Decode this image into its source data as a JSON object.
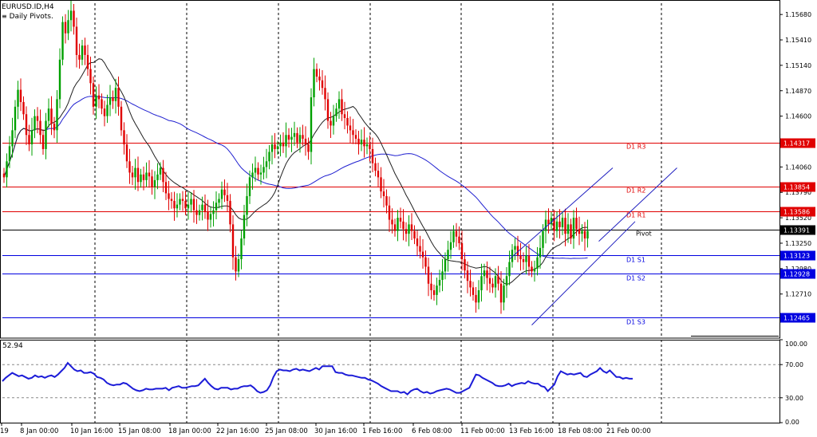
{
  "window": {
    "symbol_title": "EURUSD.ID,H4",
    "indicator_name": "Daily Pivots"
  },
  "chart_data": [
    {
      "type": "candlestick",
      "title": "EURUSD.ID,H4",
      "symbol": "EURUSD.ID",
      "timeframe": "H4",
      "ylim": [
        1.1225,
        1.158
      ],
      "price_ticks": [
        "1.15680",
        "1.15410",
        "1.15140",
        "1.14870",
        "1.14600",
        "1.14330",
        "1.14060",
        "1.13790",
        "1.13520",
        "1.13250",
        "1.12980",
        "1.12710",
        "1.12440"
      ],
      "x_tick_labels": [
        "19",
        "8 Jan 00:00",
        "10 Jan 16:00",
        "15 Jan 08:00",
        "18 Jan 00:00",
        "22 Jan 16:00",
        "25 Jan 08:00",
        "30 Jan 16:00",
        "1 Feb 16:00",
        "6 Feb 08:00",
        "11 Feb 00:00",
        "13 Feb 16:00",
        "18 Feb 08:00",
        "21 Feb 00:00"
      ],
      "close_series": [
        1.1395,
        1.1412,
        1.1428,
        1.1445,
        1.147,
        1.1488,
        1.1475,
        1.1462,
        1.144,
        1.143,
        1.1445,
        1.146,
        1.1455,
        1.144,
        1.1425,
        1.1455,
        1.1468,
        1.1452,
        1.1445,
        1.1478,
        1.152,
        1.156,
        1.1548,
        1.1562,
        1.1572,
        1.1555,
        1.1525,
        1.152,
        1.1535,
        1.1525,
        1.151,
        1.1495,
        1.147,
        1.1482,
        1.1478,
        1.1468,
        1.146,
        1.1472,
        1.148,
        1.1476,
        1.149,
        1.147,
        1.1445,
        1.143,
        1.1412,
        1.14,
        1.1395,
        1.1405,
        1.139,
        1.1398,
        1.1392,
        1.14,
        1.1396,
        1.1385,
        1.1392,
        1.1398,
        1.1405,
        1.139,
        1.1378,
        1.1372,
        1.137,
        1.1362,
        1.1366,
        1.1372,
        1.137,
        1.1362,
        1.1366,
        1.1372,
        1.136,
        1.1355,
        1.136,
        1.1366,
        1.1358,
        1.135,
        1.1356,
        1.136,
        1.1368,
        1.1372,
        1.1382,
        1.1376,
        1.137,
        1.1345,
        1.131,
        1.1295,
        1.1308,
        1.133,
        1.1355,
        1.1375,
        1.1395,
        1.14,
        1.1405,
        1.1398,
        1.14,
        1.1406,
        1.1412,
        1.1422,
        1.143,
        1.1425,
        1.1428,
        1.1432,
        1.1428,
        1.144,
        1.1435,
        1.1438,
        1.1442,
        1.1432,
        1.144,
        1.1436,
        1.143,
        1.1422,
        1.148,
        1.151,
        1.1502,
        1.1498,
        1.149,
        1.1478,
        1.1455,
        1.145,
        1.146,
        1.1468,
        1.1478,
        1.1462,
        1.1458,
        1.145,
        1.1445,
        1.144,
        1.1436,
        1.143,
        1.1435,
        1.1428,
        1.143,
        1.1425,
        1.141,
        1.1402,
        1.1395,
        1.138,
        1.1375,
        1.1365,
        1.135,
        1.1345,
        1.1338,
        1.1352,
        1.1348,
        1.134,
        1.1335,
        1.1345,
        1.1338,
        1.133,
        1.1322,
        1.1316,
        1.131,
        1.13,
        1.1282,
        1.1275,
        1.127,
        1.128,
        1.1286,
        1.1295,
        1.1308,
        1.1318,
        1.1326,
        1.1338,
        1.1332,
        1.1325,
        1.1308,
        1.1296,
        1.1285,
        1.1278,
        1.127,
        1.1262,
        1.1275,
        1.129,
        1.1296,
        1.1288,
        1.1282,
        1.1278,
        1.129,
        1.1282,
        1.1262,
        1.128,
        1.129,
        1.1305,
        1.1318,
        1.1322,
        1.1312,
        1.1308,
        1.1305,
        1.1312,
        1.13,
        1.1295,
        1.1298,
        1.131,
        1.132,
        1.1338,
        1.135,
        1.1345,
        1.1352,
        1.1338,
        1.1348,
        1.1342,
        1.1352,
        1.1335,
        1.1345,
        1.133,
        1.1352,
        1.134,
        1.1335,
        1.1338,
        1.133,
        1.1338
      ],
      "moving_averages": [
        {
          "color": "#2020d0",
          "values_start": 1.1392,
          "values_end": 1.136
        },
        {
          "color": "#202020",
          "values_start": 1.1395,
          "values_end": 1.1335
        }
      ],
      "levels": [
        {
          "label": "D1 R3",
          "value": 1.14317,
          "price_text": "1.14317",
          "color": "#e00000"
        },
        {
          "label": "D1 R2",
          "value": 1.13854,
          "price_text": "1.13854",
          "color": "#e00000"
        },
        {
          "label": "D1 R1",
          "value": 1.13586,
          "price_text": "1.13586",
          "color": "#e00000"
        },
        {
          "label": "Pivot",
          "value": 1.13391,
          "price_text": "1.13391",
          "color": "#000000"
        },
        {
          "label": "D1 S1",
          "value": 1.13123,
          "price_text": "1.13123",
          "color": "#0000e0"
        },
        {
          "label": "D1 S2",
          "value": 1.12928,
          "price_text": "1.12928",
          "color": "#0000e0"
        },
        {
          "label": "D1 S3",
          "value": 1.12465,
          "price_text": "1.12465",
          "color": "#0000e0"
        }
      ],
      "trendlines": [
        {
          "name": "channel-lower",
          "from": {
            "bar": 189,
            "price": 1.1238
          },
          "to": {
            "bar": 226,
            "price": 1.1348
          }
        },
        {
          "name": "channel-upper",
          "from": {
            "bar": 181,
            "price": 1.1308
          },
          "to": {
            "bar": 218,
            "price": 1.1405
          }
        },
        {
          "name": "channel-right",
          "from": {
            "bar": 213,
            "price": 1.1327
          },
          "to": {
            "bar": 241,
            "price": 1.1405
          }
        }
      ],
      "grid": true
    },
    {
      "type": "line",
      "title": "",
      "current_value": "52.94",
      "ylim": [
        0,
        100
      ],
      "y_tick_labels": [
        "100.00",
        "70.00",
        "30.00",
        "0.00"
      ],
      "levels": [
        70,
        30
      ],
      "color": "#1c1cd8",
      "values": [
        50,
        54,
        57,
        60,
        58,
        56,
        57,
        55,
        53,
        54,
        57,
        55,
        56,
        54,
        56,
        57,
        55,
        58,
        62,
        66,
        72,
        68,
        64,
        62,
        63,
        60,
        60,
        61,
        59,
        55,
        54,
        52,
        48,
        46,
        45,
        46,
        46,
        48,
        47,
        44,
        41,
        39,
        38,
        39,
        41,
        40,
        40,
        41,
        41,
        41,
        42,
        39,
        42,
        43,
        44,
        42,
        42,
        43,
        44,
        44,
        45,
        49,
        53,
        48,
        44,
        41,
        40,
        42,
        42,
        42,
        40,
        41,
        41,
        43,
        44,
        44,
        45,
        42,
        38,
        36,
        37,
        39,
        45,
        55,
        62,
        64,
        63,
        63,
        62,
        64,
        65,
        63,
        64,
        63,
        62,
        64,
        66,
        64,
        68,
        68,
        68,
        68,
        61,
        60,
        60,
        58,
        57,
        57,
        56,
        55,
        54,
        54,
        52,
        51,
        49,
        47,
        44,
        42,
        40,
        38,
        38,
        38,
        36,
        37,
        34,
        38,
        40,
        41,
        38,
        36,
        37,
        35,
        36,
        38,
        39,
        40,
        41,
        40,
        38,
        36,
        36,
        38,
        40,
        42,
        50,
        58,
        57,
        54,
        52,
        50,
        48,
        45,
        44,
        44,
        45,
        47,
        44,
        46,
        47,
        48,
        47,
        50,
        48,
        47,
        47,
        44,
        43,
        38,
        42,
        46,
        56,
        62,
        60,
        58,
        59,
        58,
        59,
        60,
        56,
        55,
        58,
        60,
        62,
        66,
        62,
        60,
        63,
        59,
        55,
        55,
        53,
        54,
        53,
        53
      ],
      "xlabel": "",
      "ylabel": ""
    }
  ]
}
